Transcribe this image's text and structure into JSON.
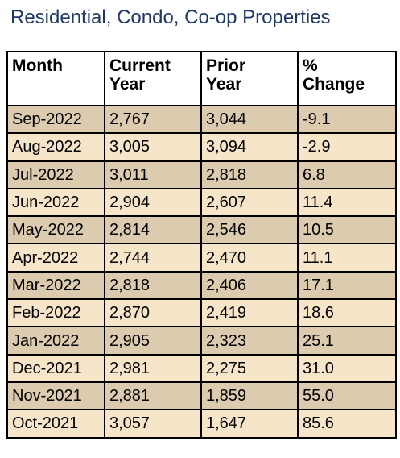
{
  "title": "Residential, Condo, Co-op Properties",
  "colors": {
    "title_text": "#1f3864",
    "row_dark": "#dccbaf",
    "row_light": "#f7e5ca",
    "border": "#000000"
  },
  "table": {
    "headers": {
      "month": "Month",
      "current_line1": "Current",
      "current_line2": "Year",
      "prior_line1": "Prior",
      "prior_line2": "Year",
      "change_line1": "%",
      "change_line2": "Change"
    },
    "rows": [
      {
        "month": "Sep-2022",
        "current": "2,767",
        "prior": "3,044",
        "change": "-9.1"
      },
      {
        "month": "Aug-2022",
        "current": "3,005",
        "prior": "3,094",
        "change": "-2.9"
      },
      {
        "month": "Jul-2022",
        "current": "3,011",
        "prior": "2,818",
        "change": "6.8"
      },
      {
        "month": "Jun-2022",
        "current": "2,904",
        "prior": "2,607",
        "change": "11.4"
      },
      {
        "month": "May-2022",
        "current": "2,814",
        "prior": "2,546",
        "change": "10.5"
      },
      {
        "month": "Apr-2022",
        "current": "2,744",
        "prior": "2,470",
        "change": "11.1"
      },
      {
        "month": "Mar-2022",
        "current": "2,818",
        "prior": "2,406",
        "change": "17.1"
      },
      {
        "month": "Feb-2022",
        "current": "2,870",
        "prior": "2,419",
        "change": "18.6"
      },
      {
        "month": "Jan-2022",
        "current": "2,905",
        "prior": "2,323",
        "change": "25.1"
      },
      {
        "month": "Dec-2021",
        "current": "2,981",
        "prior": "2,275",
        "change": "31.0"
      },
      {
        "month": "Nov-2021",
        "current": "2,881",
        "prior": "1,859",
        "change": "55.0"
      },
      {
        "month": "Oct-2021",
        "current": "3,057",
        "prior": "1,647",
        "change": "85.6"
      }
    ]
  }
}
